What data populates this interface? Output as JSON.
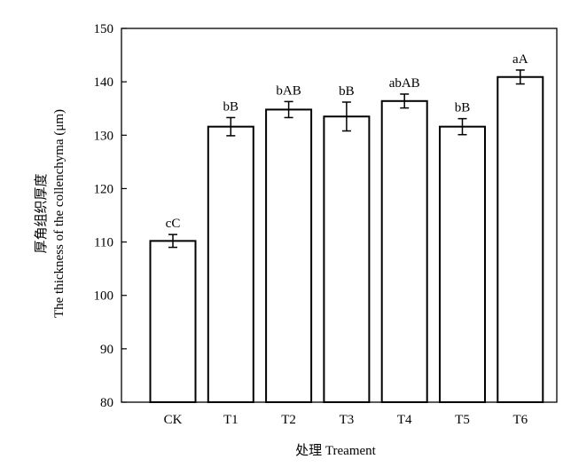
{
  "chart_data": {
    "type": "bar",
    "categories": [
      "CK",
      "T1",
      "T2",
      "T3",
      "T4",
      "T5",
      "T6"
    ],
    "values": [
      110.2,
      131.6,
      134.8,
      133.5,
      136.4,
      131.6,
      140.9
    ],
    "errors": [
      1.2,
      1.7,
      1.5,
      2.7,
      1.3,
      1.5,
      1.3
    ],
    "annotations": [
      "cC",
      "bB",
      "bAB",
      "bB",
      "abAB",
      "bB",
      "aA"
    ],
    "xlabel": "处理 Treament",
    "ylabel_line1": "厚角组织厚度",
    "ylabel_line2": "The thickness of the collenchyma (μm)",
    "ylim": [
      80,
      150
    ],
    "yticks": [
      80,
      90,
      100,
      110,
      120,
      130,
      140,
      150
    ],
    "grid": false,
    "bar_fill": "#ffffff",
    "bar_stroke": "#000000"
  }
}
